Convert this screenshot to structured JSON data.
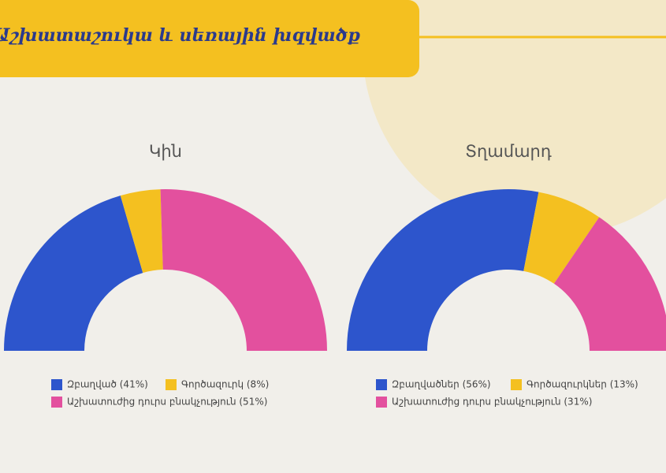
{
  "header": {
    "title": "Աշխատաշուկա և սեռային խզվածք"
  },
  "chart_data": [
    {
      "type": "half-donut",
      "title": "Կին",
      "categories": [
        "Զբաղված (41%)",
        "Գործազուրկ (8%)",
        "Աշխատուժից դուրս բնակչություն (51%)"
      ],
      "values": [
        41,
        8,
        51
      ],
      "colors": [
        "#2d55cc",
        "#f4c020",
        "#e3509e"
      ]
    },
    {
      "type": "half-donut",
      "title": "Տղամարդ",
      "categories": [
        "Զբաղվածներ (56%)",
        "Գործազուրկներ (13%)",
        "Աշխատուժից դուրս բնակչություն (31%)"
      ],
      "values": [
        56,
        13,
        31
      ],
      "colors": [
        "#2d55cc",
        "#f4c020",
        "#e3509e"
      ]
    }
  ]
}
